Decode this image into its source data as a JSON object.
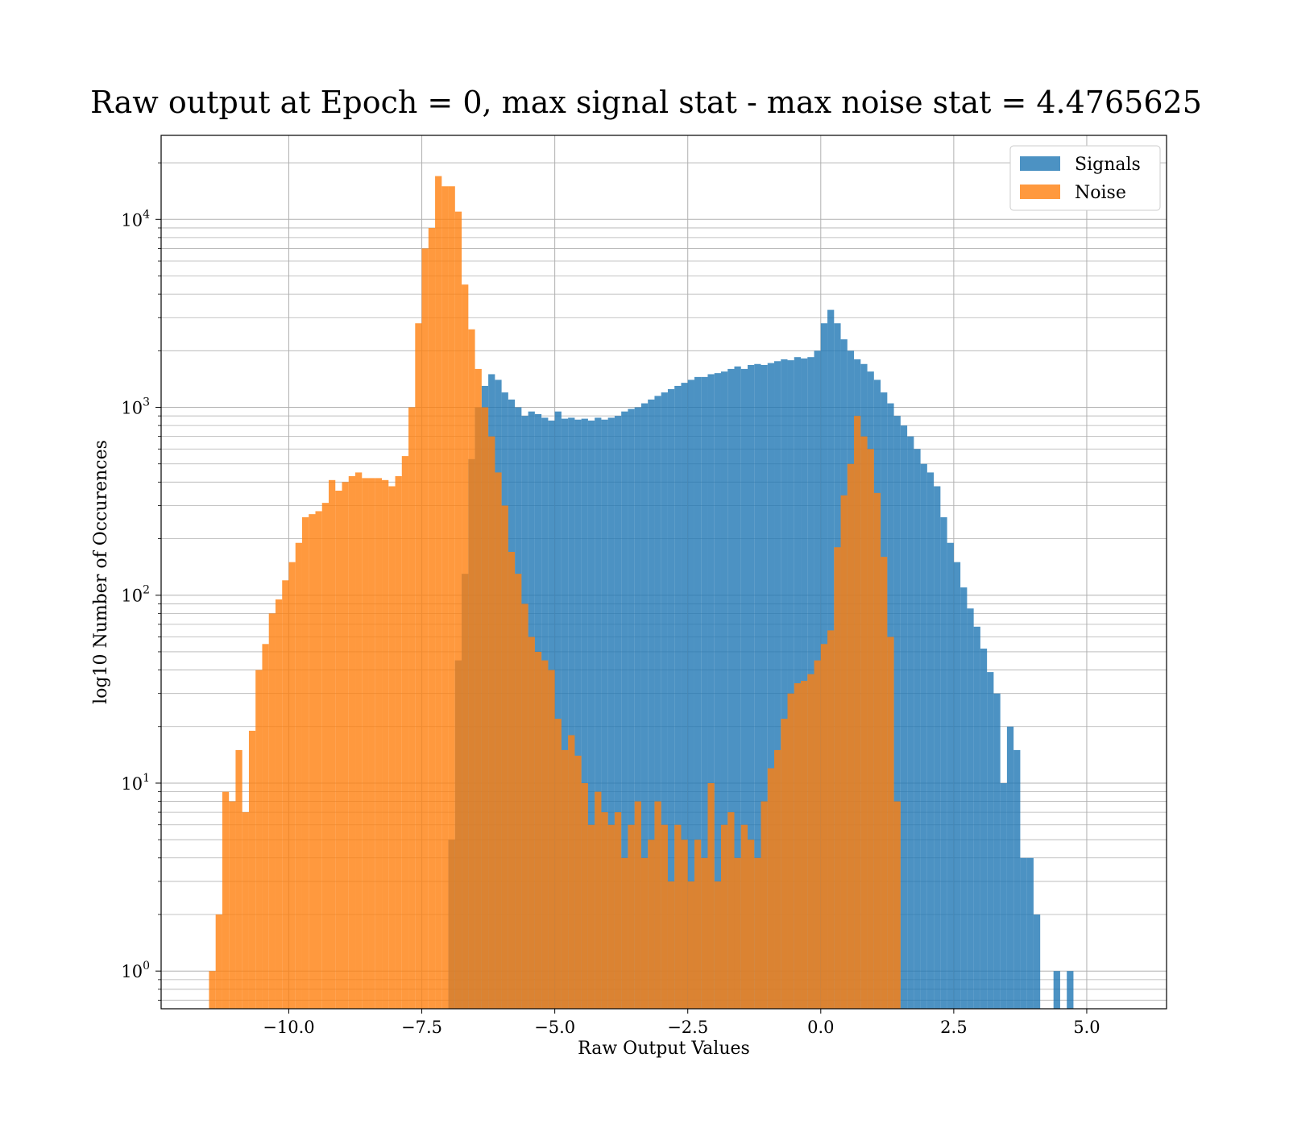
{
  "chart_data": {
    "type": "bar",
    "title": "Raw output at Epoch = 0, max signal stat - max noise stat = 4.4765625",
    "xlabel": "Raw Output Values",
    "ylabel": "log10 Number of Occurences",
    "x_scale": "linear",
    "y_scale": "log",
    "xlim": [
      -12.4,
      6.5
    ],
    "ylim": [
      0.63,
      28000
    ],
    "x_ticks": [
      -10.0,
      -7.5,
      -5.0,
      -2.5,
      0.0,
      2.5,
      5.0
    ],
    "x_tick_labels": [
      "−10.0",
      "−7.5",
      "−5.0",
      "−2.5",
      "0.0",
      "2.5",
      "5.0"
    ],
    "y_ticks": [
      {
        "value": 1,
        "base": "10",
        "exp": "0"
      },
      {
        "value": 10,
        "base": "10",
        "exp": "1"
      },
      {
        "value": 100,
        "base": "10",
        "exp": "2"
      },
      {
        "value": 1000,
        "base": "10",
        "exp": "3"
      },
      {
        "value": 10000,
        "base": "10",
        "exp": "4"
      }
    ],
    "grid": true,
    "legend_position": "top-right",
    "series": [
      {
        "name": "Signals",
        "color": "#1f77b4",
        "alpha": 0.8,
        "bin_start": -7.0,
        "bin_width": 0.125,
        "values": [
          5,
          45,
          130,
          530,
          1000,
          1300,
          1500,
          1400,
          1200,
          1100,
          1000,
          900,
          950,
          920,
          880,
          850,
          950,
          870,
          880,
          860,
          870,
          850,
          880,
          860,
          880,
          900,
          950,
          980,
          1000,
          1050,
          1100,
          1150,
          1200,
          1250,
          1300,
          1350,
          1400,
          1450,
          1450,
          1500,
          1520,
          1550,
          1600,
          1650,
          1600,
          1680,
          1700,
          1680,
          1720,
          1760,
          1800,
          1780,
          1850,
          1820,
          1850,
          2000,
          2800,
          3300,
          2800,
          2300,
          2000,
          1800,
          1700,
          1550,
          1400,
          1200,
          1050,
          900,
          800,
          700,
          600,
          500,
          450,
          380,
          260,
          190,
          150,
          110,
          85,
          68,
          52,
          39,
          30,
          10,
          20,
          15,
          4,
          4,
          2,
          0,
          0,
          1,
          0,
          1
        ]
      },
      {
        "name": "Noise",
        "color": "#ff7f0e",
        "alpha": 0.8,
        "bin_start": -11.5,
        "bin_width": 0.125,
        "values": [
          1,
          2,
          9,
          8,
          15,
          7,
          19,
          40,
          55,
          80,
          95,
          120,
          150,
          190,
          260,
          270,
          280,
          310,
          410,
          360,
          400,
          430,
          450,
          420,
          420,
          420,
          410,
          380,
          430,
          550,
          1000,
          2800,
          7000,
          9000,
          17000,
          15000,
          15000,
          11000,
          4500,
          2600,
          1600,
          1000,
          700,
          450,
          300,
          170,
          130,
          90,
          60,
          50,
          45,
          40,
          22,
          15,
          18,
          14,
          10,
          6,
          9,
          7,
          6,
          7,
          4,
          6,
          8,
          4,
          5,
          8,
          6,
          3,
          6,
          5,
          3,
          5,
          4,
          10,
          3,
          6,
          7,
          4,
          6,
          5,
          4,
          8,
          12,
          15,
          22,
          30,
          34,
          35,
          38,
          45,
          55,
          65,
          180,
          340,
          500,
          900,
          700,
          600,
          350,
          160,
          60,
          8
        ]
      }
    ]
  }
}
